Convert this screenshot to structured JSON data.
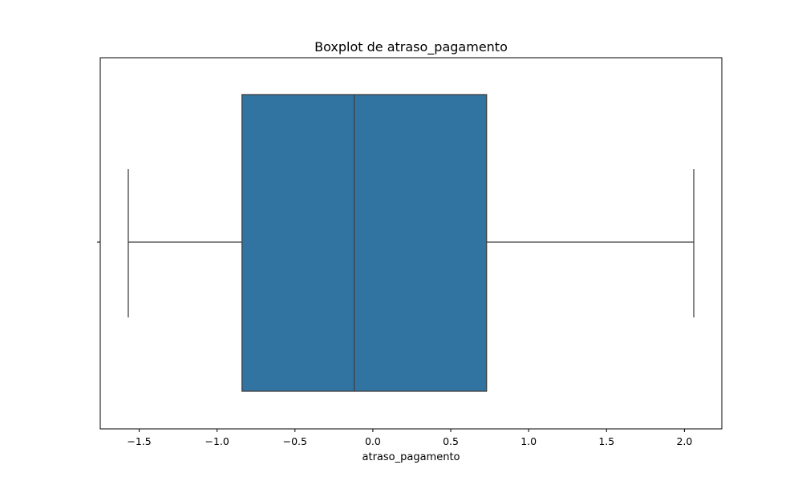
{
  "chart_data": {
    "type": "box",
    "title": "Boxplot de atraso_pagamento",
    "xlabel": "atraso_pagamento",
    "ylabel": "",
    "xlim": [
      -1.75,
      2.24
    ],
    "xticks": [
      {
        "value": -1.5,
        "label": "−1.5"
      },
      {
        "value": -1.0,
        "label": "−1.0"
      },
      {
        "value": -0.5,
        "label": "−0.5"
      },
      {
        "value": 0.0,
        "label": "0.0"
      },
      {
        "value": 0.5,
        "label": "0.5"
      },
      {
        "value": 1.0,
        "label": "1.0"
      },
      {
        "value": 1.5,
        "label": "1.5"
      },
      {
        "value": 2.0,
        "label": "2.0"
      }
    ],
    "box": {
      "whisker_low": -1.57,
      "q1": -0.84,
      "median": -0.12,
      "q3": 0.73,
      "whisker_high": 2.06
    },
    "colors": {
      "box_fill": "#3274a1",
      "line": "#3f3f3f",
      "axis": "#000000"
    },
    "grid": false,
    "legend": "none"
  }
}
